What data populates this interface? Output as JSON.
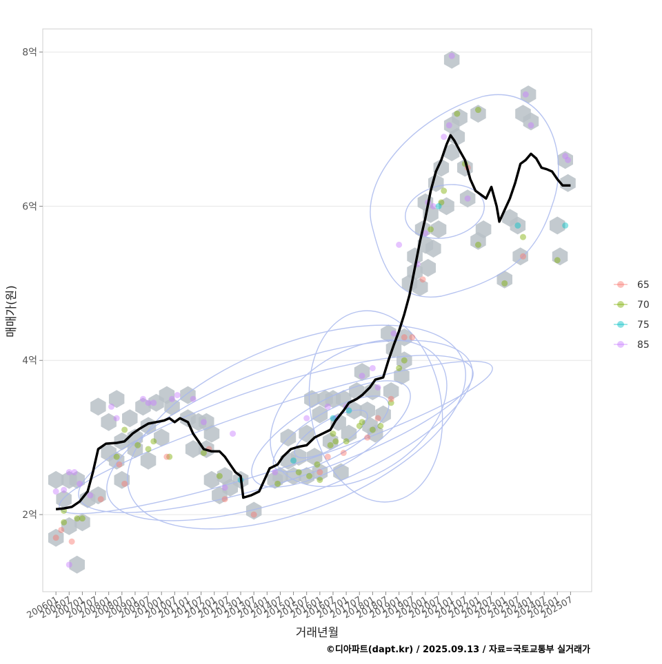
{
  "chart_data": {
    "type": "scatter",
    "xlabel": "거래년월",
    "ylabel": "매매가(원)",
    "caption": "©디아파트(dapt.kr) / 2025.09.13 / 자료=국토교통부 실거래가",
    "ylim": [
      1.0,
      8.3
    ],
    "xlim": [
      2005.5,
      2026.3
    ],
    "y_ticks": [
      {
        "value": 2,
        "label": "2억"
      },
      {
        "value": 4,
        "label": "4억"
      },
      {
        "value": 6,
        "label": "6억"
      },
      {
        "value": 8,
        "label": "8억"
      }
    ],
    "x_tick_labels": [
      "200601",
      "200607",
      "200701",
      "200707",
      "200801",
      "200807",
      "200901",
      "200907",
      "201001",
      "201007",
      "201101",
      "201107",
      "201201",
      "201207",
      "201301",
      "201307",
      "201401",
      "201407",
      "201501",
      "201507",
      "201601",
      "201607",
      "201701",
      "201707",
      "201801",
      "201807",
      "201901",
      "201907",
      "202001",
      "202007",
      "202101",
      "202107",
      "202201",
      "202207",
      "202301",
      "202307",
      "202401",
      "202407",
      "202501",
      "202507"
    ],
    "legend": {
      "title": "",
      "entries": [
        {
          "label": "65",
          "color": "#F8766D"
        },
        {
          "label": "70",
          "color": "#7CAE00"
        },
        {
          "label": "75",
          "color": "#00BFC4"
        },
        {
          "label": "85",
          "color": "#C77CFF"
        }
      ]
    },
    "trend_line": {
      "name": "moving average",
      "color": "#000000",
      "points": [
        [
          2006.0,
          2.07
        ],
        [
          2006.3,
          2.08
        ],
        [
          2006.6,
          2.1
        ],
        [
          2006.9,
          2.17
        ],
        [
          2007.2,
          2.3
        ],
        [
          2007.4,
          2.55
        ],
        [
          2007.6,
          2.85
        ],
        [
          2007.9,
          2.92
        ],
        [
          2008.3,
          2.93
        ],
        [
          2008.6,
          2.95
        ],
        [
          2008.9,
          3.05
        ],
        [
          2009.2,
          3.12
        ],
        [
          2009.5,
          3.18
        ],
        [
          2009.8,
          3.2
        ],
        [
          2010.1,
          3.22
        ],
        [
          2010.3,
          3.25
        ],
        [
          2010.5,
          3.2
        ],
        [
          2010.7,
          3.25
        ],
        [
          2011.0,
          3.2
        ],
        [
          2011.2,
          3.05
        ],
        [
          2011.4,
          2.95
        ],
        [
          2011.6,
          2.85
        ],
        [
          2011.9,
          2.82
        ],
        [
          2012.2,
          2.82
        ],
        [
          2012.4,
          2.75
        ],
        [
          2012.6,
          2.65
        ],
        [
          2012.8,
          2.55
        ],
        [
          2013.0,
          2.5
        ],
        [
          2013.1,
          2.22
        ],
        [
          2013.4,
          2.25
        ],
        [
          2013.7,
          2.3
        ],
        [
          2013.9,
          2.45
        ],
        [
          2014.1,
          2.6
        ],
        [
          2014.4,
          2.65
        ],
        [
          2014.6,
          2.75
        ],
        [
          2014.9,
          2.85
        ],
        [
          2015.2,
          2.88
        ],
        [
          2015.5,
          2.9
        ],
        [
          2015.8,
          3.0
        ],
        [
          2016.1,
          3.05
        ],
        [
          2016.4,
          3.1
        ],
        [
          2016.6,
          3.22
        ],
        [
          2016.9,
          3.35
        ],
        [
          2017.1,
          3.45
        ],
        [
          2017.4,
          3.5
        ],
        [
          2017.6,
          3.55
        ],
        [
          2017.9,
          3.65
        ],
        [
          2018.1,
          3.75
        ],
        [
          2018.4,
          3.78
        ],
        [
          2018.6,
          4.0
        ],
        [
          2018.8,
          4.2
        ],
        [
          2019.0,
          4.38
        ],
        [
          2019.2,
          4.6
        ],
        [
          2019.4,
          4.85
        ],
        [
          2019.6,
          5.2
        ],
        [
          2019.8,
          5.55
        ],
        [
          2020.0,
          5.85
        ],
        [
          2020.2,
          6.2
        ],
        [
          2020.4,
          6.45
        ],
        [
          2020.6,
          6.6
        ],
        [
          2020.8,
          6.8
        ],
        [
          2020.95,
          6.92
        ],
        [
          2021.1,
          6.85
        ],
        [
          2021.3,
          6.72
        ],
        [
          2021.5,
          6.6
        ],
        [
          2021.7,
          6.35
        ],
        [
          2021.9,
          6.2
        ],
        [
          2022.1,
          6.15
        ],
        [
          2022.3,
          6.1
        ],
        [
          2022.5,
          6.25
        ],
        [
          2022.7,
          6.0
        ],
        [
          2022.8,
          5.8
        ],
        [
          2023.0,
          5.95
        ],
        [
          2023.2,
          6.1
        ],
        [
          2023.4,
          6.3
        ],
        [
          2023.6,
          6.55
        ],
        [
          2023.8,
          6.6
        ],
        [
          2024.0,
          6.68
        ],
        [
          2024.2,
          6.62
        ],
        [
          2024.4,
          6.5
        ],
        [
          2024.6,
          6.48
        ],
        [
          2024.8,
          6.45
        ],
        [
          2025.0,
          6.35
        ],
        [
          2025.2,
          6.27
        ],
        [
          2025.5,
          6.27
        ]
      ]
    },
    "hexbins": [
      [
        2006.0,
        2.45
      ],
      [
        2006.0,
        1.7
      ],
      [
        2006.3,
        2.2
      ],
      [
        2006.5,
        2.45
      ],
      [
        2006.5,
        1.85
      ],
      [
        2006.8,
        1.35
      ],
      [
        2006.8,
        2.45
      ],
      [
        2007.0,
        1.9
      ],
      [
        2007.2,
        2.2
      ],
      [
        2007.6,
        2.25
      ],
      [
        2007.6,
        3.4
      ],
      [
        2008.0,
        3.2
      ],
      [
        2008.0,
        2.8
      ],
      [
        2008.3,
        3.5
      ],
      [
        2008.3,
        2.7
      ],
      [
        2008.5,
        2.95
      ],
      [
        2008.5,
        2.45
      ],
      [
        2008.8,
        3.25
      ],
      [
        2009.0,
        3.0
      ],
      [
        2009.0,
        2.85
      ],
      [
        2009.3,
        3.4
      ],
      [
        2009.5,
        2.7
      ],
      [
        2009.5,
        3.15
      ],
      [
        2009.8,
        3.45
      ],
      [
        2010.0,
        3.0
      ],
      [
        2010.2,
        3.55
      ],
      [
        2010.4,
        3.4
      ],
      [
        2011.0,
        3.55
      ],
      [
        2011.0,
        3.25
      ],
      [
        2011.2,
        2.85
      ],
      [
        2011.4,
        3.2
      ],
      [
        2011.7,
        3.2
      ],
      [
        2011.7,
        2.85
      ],
      [
        2011.9,
        3.05
      ],
      [
        2011.9,
        2.45
      ],
      [
        2012.2,
        2.25
      ],
      [
        2012.4,
        2.5
      ],
      [
        2012.6,
        2.35
      ],
      [
        2013.0,
        2.45
      ],
      [
        2013.5,
        2.05
      ],
      [
        2014.3,
        2.45
      ],
      [
        2014.5,
        2.5
      ],
      [
        2014.8,
        2.7
      ],
      [
        2014.8,
        3.0
      ],
      [
        2015.0,
        2.5
      ],
      [
        2015.2,
        2.75
      ],
      [
        2015.5,
        3.05
      ],
      [
        2015.5,
        2.5
      ],
      [
        2015.7,
        3.5
      ],
      [
        2015.8,
        2.75
      ],
      [
        2016.0,
        3.3
      ],
      [
        2016.0,
        2.55
      ],
      [
        2016.2,
        3.5
      ],
      [
        2016.4,
        2.95
      ],
      [
        2016.5,
        3.5
      ],
      [
        2016.7,
        3.2
      ],
      [
        2016.8,
        2.55
      ],
      [
        2016.9,
        3.5
      ],
      [
        2017.1,
        3.05
      ],
      [
        2017.3,
        3.35
      ],
      [
        2017.4,
        3.6
      ],
      [
        2017.6,
        3.85
      ],
      [
        2017.8,
        3.35
      ],
      [
        2017.9,
        3.15
      ],
      [
        2018.0,
        3.6
      ],
      [
        2018.1,
        3.05
      ],
      [
        2018.4,
        3.3
      ],
      [
        2018.6,
        4.35
      ],
      [
        2018.7,
        3.6
      ],
      [
        2018.8,
        4.15
      ],
      [
        2019.1,
        3.8
      ],
      [
        2019.2,
        4.0
      ],
      [
        2019.2,
        4.3
      ],
      [
        2019.4,
        5.0
      ],
      [
        2019.6,
        5.15
      ],
      [
        2019.6,
        5.35
      ],
      [
        2019.8,
        4.95
      ],
      [
        2019.9,
        5.7
      ],
      [
        2020.0,
        5.5
      ],
      [
        2020.0,
        6.05
      ],
      [
        2020.1,
        5.2
      ],
      [
        2020.2,
        5.9
      ],
      [
        2020.3,
        5.45
      ],
      [
        2020.4,
        6.3
      ],
      [
        2020.5,
        5.7
      ],
      [
        2020.6,
        6.5
      ],
      [
        2020.8,
        6.0
      ],
      [
        2021.0,
        6.7
      ],
      [
        2021.0,
        7.05
      ],
      [
        2021.0,
        7.9
      ],
      [
        2021.2,
        6.9
      ],
      [
        2021.3,
        7.15
      ],
      [
        2021.5,
        6.5
      ],
      [
        2021.6,
        6.1
      ],
      [
        2022.0,
        7.2
      ],
      [
        2022.0,
        5.55
      ],
      [
        2022.2,
        5.7
      ],
      [
        2023.0,
        5.05
      ],
      [
        2023.2,
        5.85
      ],
      [
        2023.5,
        5.75
      ],
      [
        2023.6,
        5.35
      ],
      [
        2023.7,
        7.2
      ],
      [
        2023.9,
        7.45
      ],
      [
        2024.0,
        7.1
      ],
      [
        2025.0,
        5.75
      ],
      [
        2025.1,
        5.35
      ],
      [
        2025.3,
        6.6
      ],
      [
        2025.4,
        6.3
      ]
    ],
    "points_85": [
      [
        2006.0,
        2.3
      ],
      [
        2006.3,
        2.32
      ],
      [
        2006.5,
        2.55
      ],
      [
        2006.7,
        2.55
      ],
      [
        2006.9,
        2.4
      ],
      [
        2006.5,
        1.35
      ],
      [
        2007.3,
        2.25
      ],
      [
        2008.1,
        3.4
      ],
      [
        2008.3,
        3.25
      ],
      [
        2009.3,
        3.5
      ],
      [
        2009.5,
        3.45
      ],
      [
        2009.7,
        3.45
      ],
      [
        2010.4,
        3.5
      ],
      [
        2010.6,
        3.55
      ],
      [
        2011.2,
        3.5
      ],
      [
        2011.6,
        3.2
      ],
      [
        2012.4,
        2.35
      ],
      [
        2012.7,
        3.05
      ],
      [
        2014.3,
        2.55
      ],
      [
        2015.5,
        3.25
      ],
      [
        2016.3,
        3.4
      ],
      [
        2016.6,
        3.25
      ],
      [
        2017.0,
        3.4
      ],
      [
        2017.6,
        3.8
      ],
      [
        2018.0,
        3.9
      ],
      [
        2018.2,
        3.65
      ],
      [
        2018.8,
        4.35
      ],
      [
        2019.0,
        5.5
      ],
      [
        2019.7,
        5.25
      ],
      [
        2020.0,
        5.65
      ],
      [
        2020.1,
        6.05
      ],
      [
        2020.3,
        6.0
      ],
      [
        2020.7,
        6.9
      ],
      [
        2020.9,
        7.05
      ],
      [
        2021.0,
        7.95
      ],
      [
        2021.6,
        6.1
      ],
      [
        2023.8,
        7.45
      ],
      [
        2024.0,
        7.05
      ],
      [
        2025.3,
        6.65
      ],
      [
        2025.4,
        6.6
      ]
    ],
    "points_70": [
      [
        2006.3,
        2.05
      ],
      [
        2006.3,
        1.9
      ],
      [
        2006.8,
        1.95
      ],
      [
        2007.0,
        1.95
      ],
      [
        2008.3,
        2.75
      ],
      [
        2008.6,
        3.1
      ],
      [
        2009.1,
        2.9
      ],
      [
        2009.5,
        2.85
      ],
      [
        2009.7,
        2.95
      ],
      [
        2010.3,
        2.75
      ],
      [
        2011.6,
        2.8
      ],
      [
        2012.2,
        2.5
      ],
      [
        2014.4,
        2.4
      ],
      [
        2015.2,
        2.55
      ],
      [
        2015.6,
        2.5
      ],
      [
        2015.9,
        2.65
      ],
      [
        2016.0,
        2.45
      ],
      [
        2016.4,
        2.9
      ],
      [
        2016.5,
        3.05
      ],
      [
        2016.6,
        2.95
      ],
      [
        2017.0,
        2.95
      ],
      [
        2017.5,
        3.15
      ],
      [
        2017.6,
        3.2
      ],
      [
        2018.0,
        3.1
      ],
      [
        2018.3,
        3.15
      ],
      [
        2018.7,
        3.45
      ],
      [
        2019.0,
        3.9
      ],
      [
        2019.2,
        4.0
      ],
      [
        2020.2,
        5.7
      ],
      [
        2020.6,
        6.05
      ],
      [
        2020.7,
        6.2
      ],
      [
        2021.2,
        7.2
      ],
      [
        2021.5,
        6.55
      ],
      [
        2022.0,
        7.25
      ],
      [
        2022.0,
        5.5
      ],
      [
        2023.0,
        5.0
      ],
      [
        2023.7,
        5.6
      ],
      [
        2025.0,
        5.3
      ]
    ],
    "points_65": [
      [
        2006.0,
        1.7
      ],
      [
        2006.2,
        1.8
      ],
      [
        2006.6,
        1.65
      ],
      [
        2007.7,
        2.2
      ],
      [
        2008.4,
        2.65
      ],
      [
        2008.6,
        2.4
      ],
      [
        2010.2,
        2.75
      ],
      [
        2011.8,
        2.85
      ],
      [
        2012.4,
        2.2
      ],
      [
        2013.5,
        2.0
      ],
      [
        2016.0,
        2.55
      ],
      [
        2016.3,
        2.75
      ],
      [
        2016.9,
        2.8
      ],
      [
        2017.8,
        3.0
      ],
      [
        2018.2,
        3.25
      ],
      [
        2018.7,
        3.5
      ],
      [
        2019.2,
        4.3
      ],
      [
        2019.5,
        4.3
      ],
      [
        2019.9,
        5.05
      ],
      [
        2021.6,
        6.5
      ],
      [
        2023.7,
        5.35
      ]
    ],
    "points_75": [
      [
        2013.0,
        2.45
      ],
      [
        2015.0,
        2.7
      ],
      [
        2016.5,
        3.25
      ],
      [
        2017.1,
        3.35
      ],
      [
        2020.5,
        6.0
      ],
      [
        2023.5,
        5.75
      ],
      [
        2025.3,
        5.75
      ]
    ]
  }
}
